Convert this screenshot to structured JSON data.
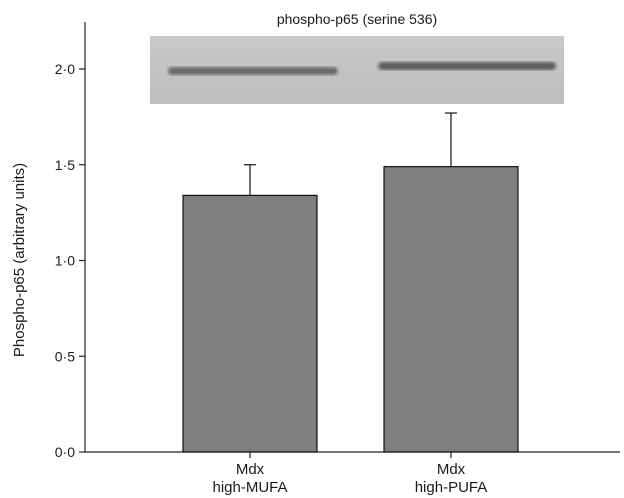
{
  "chart_data": {
    "type": "bar",
    "title": "",
    "xlabel": "",
    "ylabel": "Phospho-p65 (arbitrary units)",
    "ylim": [
      0,
      2.2
    ],
    "yticks": [
      "0·0",
      "0·5",
      "1·0",
      "1·5",
      "2·0"
    ],
    "ytick_values": [
      0,
      0.5,
      1.0,
      1.5,
      2.0
    ],
    "categories": [
      {
        "line1": "Mdx",
        "line2": "high-MUFA"
      },
      {
        "line1": "Mdx",
        "line2": "high-PUFA"
      }
    ],
    "values": [
      1.34,
      1.49
    ],
    "errors": [
      0.16,
      0.28
    ],
    "bar_color": "#7f7f82",
    "grid": false,
    "blot_label": "phospho-p65 (serine 536)"
  }
}
